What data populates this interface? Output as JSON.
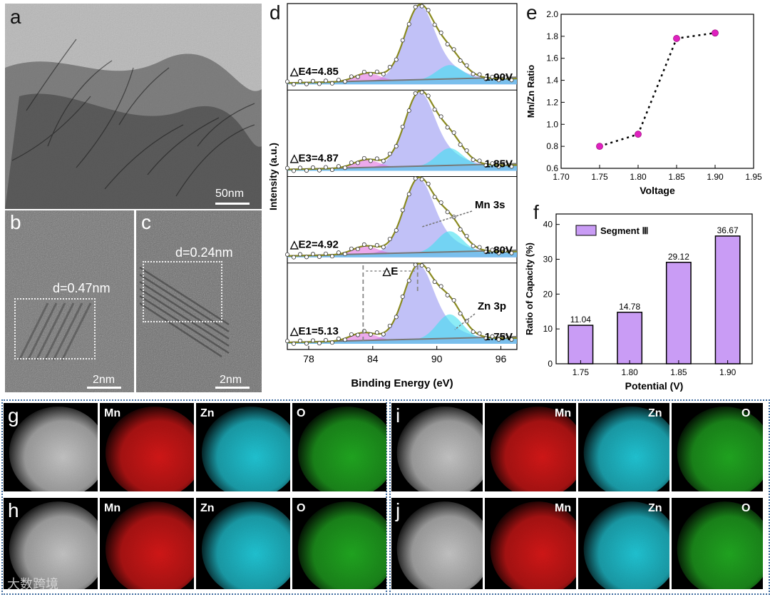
{
  "panels": {
    "a": {
      "letter": "a",
      "scale": "50nm"
    },
    "b": {
      "letter": "b",
      "scale": "2nm",
      "d_spacing": "d=0.47nm"
    },
    "c": {
      "letter": "c",
      "scale": "2nm",
      "d_spacing": "d=0.24nm"
    },
    "d": {
      "letter": "d"
    },
    "e": {
      "letter": "e"
    },
    "f": {
      "letter": "f"
    },
    "g": {
      "letter": "g",
      "maps": [
        "Mn",
        "Zn",
        "O"
      ]
    },
    "h": {
      "letter": "h",
      "maps": [
        "Mn",
        "Zn",
        "O"
      ]
    },
    "i": {
      "letter": "i",
      "maps": [
        "Mn",
        "Zn",
        "O"
      ]
    },
    "j": {
      "letter": "j",
      "maps": [
        "Mn",
        "Zn",
        "O"
      ]
    }
  },
  "colors": {
    "Mn": "#e01818",
    "Zn": "#22d0e0",
    "O": "#22b022",
    "bar": "#c99cf5",
    "point": "#e020c0",
    "fit": "#8a8a20"
  },
  "watermark": "大数跨境",
  "chart_data": [
    {
      "type": "line",
      "panel": "d",
      "xlabel": "Binding Energy (eV)",
      "ylabel": "Intensity (a.u.)",
      "xlim": [
        76,
        97.5
      ],
      "xticks": [
        "78",
        "84",
        "90",
        "96"
      ],
      "spectra": [
        {
          "voltage": "1.90V",
          "delta_label": "△E4=4.85",
          "mn3s_main": 88.3,
          "sat": 83.5
        },
        {
          "voltage": "1.85V",
          "delta_label": "△E3=4.87",
          "mn3s_main": 88.3,
          "sat": 83.4
        },
        {
          "voltage": "1.80V",
          "delta_label": "△E2=4.92",
          "mn3s_main": 88.2,
          "sat": 83.3
        },
        {
          "voltage": "1.75V",
          "delta_label": "△E1=5.13",
          "mn3s_main": 88.2,
          "sat": 83.1
        }
      ],
      "annotations": [
        "Mn 3s",
        "Zn 3p",
        "△E"
      ]
    },
    {
      "type": "scatter",
      "panel": "e",
      "xlabel": "Voltage",
      "ylabel": "Mn/Zn Ratio",
      "xlim": [
        1.7,
        1.95
      ],
      "ylim": [
        0.6,
        2.0
      ],
      "xticks": [
        "1.70",
        "1.75",
        "1.80",
        "1.85",
        "1.90",
        "1.95"
      ],
      "yticks": [
        "0.6",
        "0.8",
        "1.0",
        "1.2",
        "1.4",
        "1.6",
        "1.8",
        "2.0"
      ],
      "x": [
        1.75,
        1.8,
        1.85,
        1.9
      ],
      "y": [
        0.8,
        0.91,
        1.78,
        1.83
      ]
    },
    {
      "type": "bar",
      "panel": "f",
      "xlabel": "Potential (V)",
      "ylabel": "Ratio of Capacity  (%)",
      "legend": "Segment Ⅲ",
      "categories": [
        "1.75",
        "1.80",
        "1.85",
        "1.90"
      ],
      "values": [
        11.04,
        14.78,
        29.12,
        36.67
      ],
      "labels": [
        "11.04",
        "14.78",
        "29.12",
        "36.67"
      ],
      "ylim": [
        0,
        43
      ],
      "yticks": [
        "0",
        "10",
        "20",
        "30",
        "40"
      ]
    }
  ]
}
